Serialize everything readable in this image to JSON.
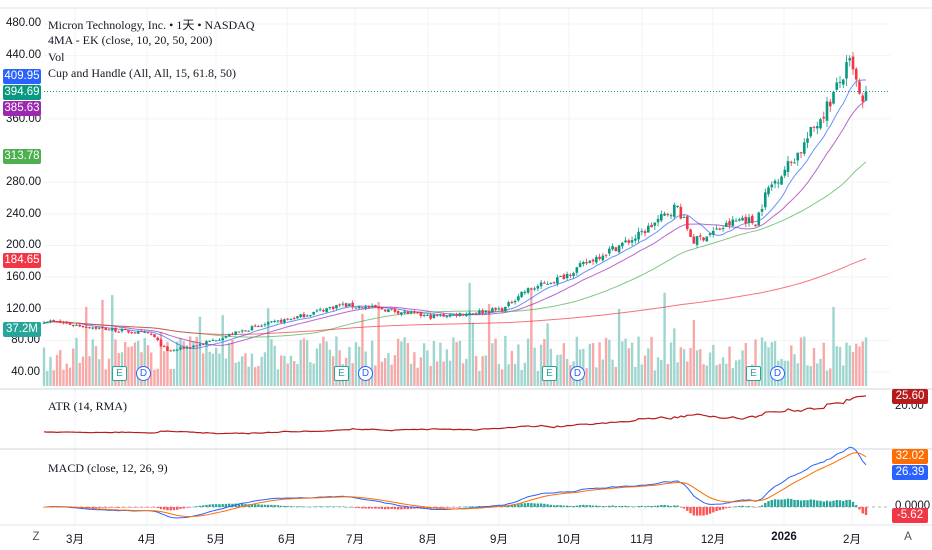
{
  "header": {
    "symbol_title": "Micron Technology, Inc. • 1天 • NASDAQ",
    "indicator_ma": "4MA - EK (close, 10, 20, 50, 200)",
    "indicator_vol": "Vol",
    "indicator_cup": "Cup and Handle (All, All, 15, 61.8, 50)"
  },
  "price_axis": {
    "ticks": [
      "480.00",
      "440.00",
      "360.00",
      "280.00",
      "240.00",
      "200.00",
      "160.00",
      "120.00",
      "80.00",
      "40.00"
    ],
    "tick_values": [
      480,
      440,
      360,
      280,
      240,
      200,
      160,
      120,
      80,
      40
    ],
    "badges": [
      {
        "label": "409.95",
        "value": 409.95,
        "color": "#2962ff"
      },
      {
        "label": "394.69",
        "value": 394.69,
        "color": "#089981"
      },
      {
        "label": "385.63",
        "value": 385.63,
        "color": "#9c27b0"
      },
      {
        "label": "313.78",
        "value": 313.78,
        "color": "#4caf50"
      },
      {
        "label": "184.65",
        "value": 184.65,
        "color": "#f23645"
      }
    ],
    "volume_badge": {
      "label": "37.2M",
      "color": "#26a69a"
    }
  },
  "atr_pane": {
    "title": "ATR (14, RMA)",
    "tick": "20.00",
    "value_badge": "25.60",
    "color": "#b71c1c"
  },
  "macd_pane": {
    "title": "MACD (close, 12, 26, 9)",
    "zero_tick": "0.0000",
    "signal_badge": "32.02",
    "signal_color": "#ff6d00",
    "macd_badge": "26.39",
    "macd_color": "#2962ff",
    "hist_badge": "-5.62",
    "hist_color": "#f23645"
  },
  "time_axis": {
    "left_button": "Z",
    "right_button": "A",
    "labels": [
      "3月",
      "4月",
      "5月",
      "6月",
      "7月",
      "8月",
      "9月",
      "10月",
      "11月",
      "12月",
      "2026",
      "2月"
    ]
  },
  "markers": [
    "E",
    "D",
    "E",
    "D",
    "E",
    "D",
    "E",
    "D"
  ],
  "chart_data": {
    "type": "candlestick",
    "title": "Micron Technology, Inc. • 1天 • NASDAQ",
    "ylim": [
      20,
      480
    ],
    "x_months": [
      "3月",
      "4月",
      "5月",
      "6月",
      "7月",
      "8月",
      "9月",
      "10月",
      "11月",
      "12月",
      "2026",
      "2月"
    ],
    "close_anchors": [
      {
        "t": 0,
        "v": 105
      },
      {
        "t": 0.07,
        "v": 95
      },
      {
        "t": 0.13,
        "v": 88
      },
      {
        "t": 0.15,
        "v": 66
      },
      {
        "t": 0.19,
        "v": 75
      },
      {
        "t": 0.25,
        "v": 95
      },
      {
        "t": 0.31,
        "v": 110
      },
      {
        "t": 0.36,
        "v": 125
      },
      {
        "t": 0.41,
        "v": 120
      },
      {
        "t": 0.47,
        "v": 110
      },
      {
        "t": 0.52,
        "v": 115
      },
      {
        "t": 0.56,
        "v": 120
      },
      {
        "t": 0.58,
        "v": 140
      },
      {
        "t": 0.63,
        "v": 160
      },
      {
        "t": 0.68,
        "v": 190
      },
      {
        "t": 0.72,
        "v": 210
      },
      {
        "t": 0.77,
        "v": 250
      },
      {
        "t": 0.79,
        "v": 205
      },
      {
        "t": 0.82,
        "v": 220
      },
      {
        "t": 0.85,
        "v": 235
      },
      {
        "t": 0.865,
        "v": 228
      },
      {
        "t": 0.88,
        "v": 270
      },
      {
        "t": 0.92,
        "v": 320
      },
      {
        "t": 0.955,
        "v": 380
      },
      {
        "t": 0.98,
        "v": 430
      },
      {
        "t": 0.99,
        "v": 400
      },
      {
        "t": 0.995,
        "v": 370
      },
      {
        "t": 1,
        "v": 394.69
      }
    ],
    "moving_averages": [
      10,
      20,
      50,
      200
    ],
    "volume_last": "37.2M",
    "atr_last": 25.6,
    "macd_last": {
      "macd": 26.39,
      "signal": 32.02,
      "hist": -5.62
    }
  }
}
